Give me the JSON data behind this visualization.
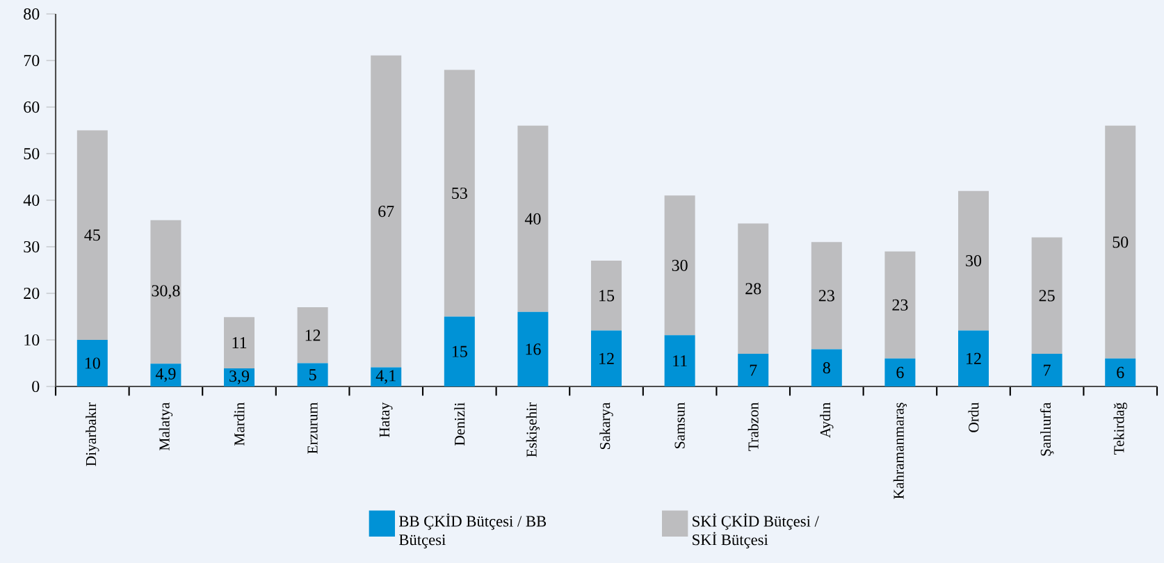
{
  "chart_data": {
    "type": "bar",
    "stacked": true,
    "legend": "bottom",
    "grid": false,
    "categories": [
      "Diyarbakır",
      "Malatya",
      "Mardin",
      "Erzurum",
      "Hatay",
      "Denizli",
      "Eskişehir",
      "Sakarya",
      "Samsun",
      "Trabzon",
      "Aydın",
      "Kahramanmaraş",
      "Ordu",
      "Şanlıurfa",
      "Tekirdağ"
    ],
    "ylim": [
      0,
      80
    ],
    "yticks": [
      0,
      10,
      20,
      30,
      40,
      50,
      60,
      70,
      80
    ],
    "series": [
      {
        "name": "BB ÇKİD Bütçesi / BB Bütçesi",
        "color": "#0092d6",
        "values": [
          10,
          4.9,
          3.9,
          5,
          4.1,
          15,
          16,
          12,
          11,
          7,
          8,
          6,
          12,
          7,
          6
        ],
        "value_labels": [
          "10",
          "4,9",
          "3,9",
          "5",
          "4,1",
          "15",
          "16",
          "12",
          "11",
          "7",
          "8",
          "6",
          "12",
          "7",
          "6"
        ]
      },
      {
        "name": "SKİ ÇKİD Bütçesi / SKİ Bütçesi",
        "color": "#bdbdbf",
        "values": [
          45,
          30.8,
          11,
          12,
          67,
          53,
          40,
          15,
          30,
          28,
          23,
          23,
          30,
          25,
          50
        ],
        "value_labels": [
          "45",
          "30,8",
          "11",
          "12",
          "67",
          "53",
          "40",
          "15",
          "30",
          "28",
          "23",
          "23",
          "30",
          "25",
          "50"
        ]
      }
    ]
  }
}
